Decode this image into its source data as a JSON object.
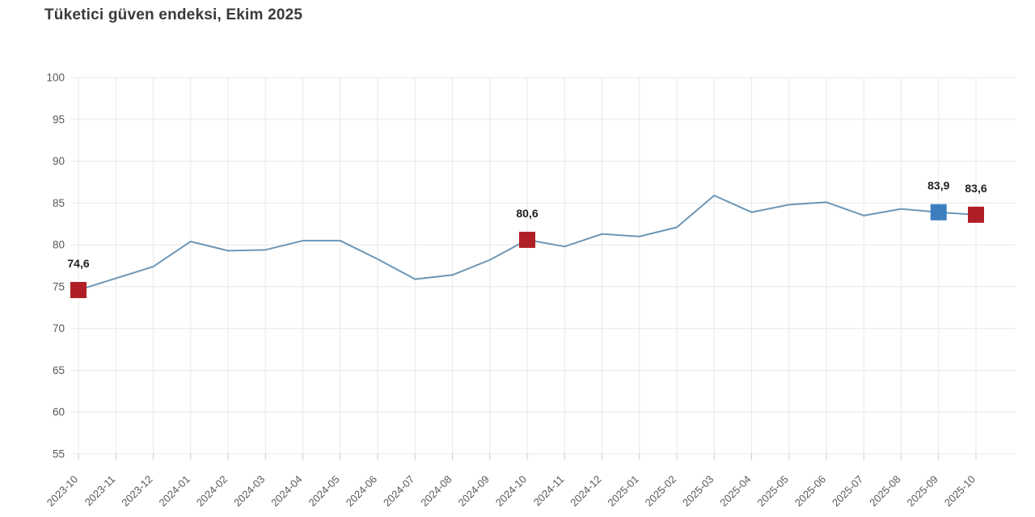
{
  "title": "Tüketici güven endeksi, Ekim 2025",
  "chart_data": {
    "type": "line",
    "title": "Tüketici güven endeksi, Ekim 2025",
    "x": [
      "2023-10",
      "2023-11",
      "2023-12",
      "2024-01",
      "2024-02",
      "2024-03",
      "2024-04",
      "2024-05",
      "2024-06",
      "2024-07",
      "2024-08",
      "2024-09",
      "2024-10",
      "2024-11",
      "2024-12",
      "2025-01",
      "2025-02",
      "2025-03",
      "2025-04",
      "2025-05",
      "2025-06",
      "2025-07",
      "2025-08",
      "2025-09",
      "2025-10"
    ],
    "values": [
      74.6,
      76.0,
      77.4,
      80.4,
      79.3,
      79.4,
      80.5,
      80.5,
      78.3,
      75.9,
      76.4,
      78.2,
      80.6,
      79.8,
      81.3,
      81.0,
      82.1,
      85.9,
      83.9,
      84.8,
      85.1,
      83.5,
      84.3,
      83.9,
      83.6
    ],
    "ylim": [
      55,
      100
    ],
    "ytick_step": 5,
    "grid": true,
    "legend": "none",
    "xlabel": "",
    "ylabel": "",
    "annotated_points": [
      {
        "x": "2023-10",
        "value": 74.6,
        "label": "74,6",
        "marker_color": "#b01f26"
      },
      {
        "x": "2024-10",
        "value": 80.6,
        "label": "80,6",
        "marker_color": "#b01f26"
      },
      {
        "x": "2025-09",
        "value": 83.9,
        "label": "83,9",
        "marker_color": "#3d7ebf"
      },
      {
        "x": "2025-10",
        "value": 83.6,
        "label": "83,6",
        "marker_color": "#b01f26"
      }
    ]
  },
  "colors": {
    "line": "#6c96b6",
    "grid": "#e8e8e8",
    "tick": "#c9c9c9",
    "axis_text": "#595959",
    "value_text": "#1f1f1f",
    "marker_red": "#b01f26",
    "marker_blue": "#3d7ebf"
  }
}
